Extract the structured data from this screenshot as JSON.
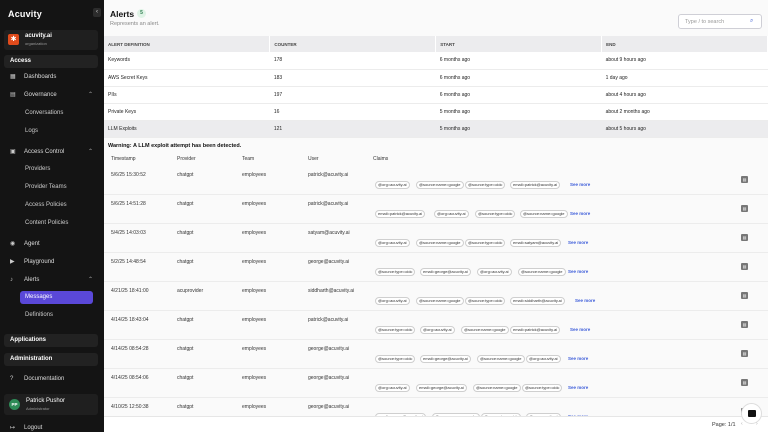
{
  "sidebar": {
    "logo": "Acuvity",
    "collapse_label": "‹",
    "org": {
      "name": "acuvity.ai",
      "subtitle": "organization",
      "icon": "acuvity-logo-icon",
      "icon_glyph": "✱"
    },
    "sections": {
      "access": "Access",
      "applications": "Applications",
      "administration": "Administration"
    },
    "items": {
      "dashboards": {
        "label": "Dashboards",
        "icon": "grid-icon",
        "glyph": "▦"
      },
      "governance": {
        "label": "Governance",
        "icon": "clipboard-icon",
        "glyph": "▤"
      },
      "conversations": "Conversations",
      "logs": "Logs",
      "access_control": {
        "label": "Access Control",
        "icon": "lock-icon",
        "glyph": "▣"
      },
      "providers": "Providers",
      "provider_teams": "Provider Teams",
      "access_policies": "Access Policies",
      "content_policies": "Content Policies",
      "agent": {
        "label": "Agent",
        "icon": "agent-icon",
        "glyph": "◉"
      },
      "playground": {
        "label": "Playground",
        "icon": "playground-icon",
        "glyph": "▶"
      },
      "alerts": {
        "label": "Alerts",
        "icon": "bell-icon",
        "glyph": "♪"
      },
      "messages": "Messages",
      "definitions": "Definitions",
      "documentation": {
        "label": "Documentation",
        "icon": "help-icon",
        "glyph": "?"
      },
      "logout": {
        "label": "Logout",
        "icon": "logout-icon",
        "glyph": "↦"
      }
    },
    "chevron_up": "⌃",
    "chevron_down": "⌄",
    "user": {
      "initials": "PP",
      "name": "Patrick Pushor",
      "role": "Administrator"
    }
  },
  "header": {
    "title": "Alerts",
    "count": "5",
    "subtitle": "Represents an alert.",
    "search_placeholder": "Type / to search",
    "search_glyph": "⌕"
  },
  "definitions_table": {
    "columns": [
      "ALERT DEFINITION",
      "COUNTER",
      "START",
      "END"
    ],
    "rows": [
      [
        "Keywords",
        "178",
        "6 months ago",
        "about 9 hours ago"
      ],
      [
        "AWS Secret Keys",
        "183",
        "6 months ago",
        "1 day ago"
      ],
      [
        "PIIs",
        "197",
        "6 months ago",
        "about 4 hours ago"
      ],
      [
        "Private Keys",
        "16",
        "5 months ago",
        "about 2 months ago"
      ],
      [
        "LLM Exploits",
        "121",
        "5 months ago",
        "about 5 hours ago"
      ]
    ]
  },
  "warning": "Warning: A LLM exploit attempt has been detected.",
  "messages": {
    "columns": [
      "Timestamp",
      "Provider",
      "Team",
      "User",
      "Claims"
    ],
    "see_more": "See more",
    "note_glyph": "▤",
    "rows": [
      {
        "ts": "5/6/25 15:30:52",
        "provider": "chatgpt",
        "team": "employees",
        "user": "patrick@acuvity.ai",
        "claims": [
          "@org=acuvity.ai",
          "@source:name=google",
          "@source:type=oidc",
          "email=patrick@acuvity.ai"
        ]
      },
      {
        "ts": "5/6/25 14:51:28",
        "provider": "chatgpt",
        "team": "employees",
        "user": "patrick@acuvity.ai",
        "claims": [
          "email=patrick@acuvity.ai",
          "@org=acuvity.ai",
          "@source:type=oidc",
          "@source:name=google"
        ]
      },
      {
        "ts": "5/4/25 14:03:03",
        "provider": "chatgpt",
        "team": "employees",
        "user": "satyam@acuvity.ai",
        "claims": [
          "@org=acuvity.ai",
          "@source:name=google",
          "@source:type=oidc",
          "email=satyam@acuvity.ai"
        ]
      },
      {
        "ts": "5/2/25 14:48:54",
        "provider": "chatgpt",
        "team": "employees",
        "user": "george@acuvity.ai",
        "claims": [
          "@source:type=oidc",
          "email=george@acuvity.ai",
          "@org=acuvity.ai",
          "@source:name=google"
        ]
      },
      {
        "ts": "4/21/25 18:41:00",
        "provider": "acuprovider",
        "team": "employees",
        "user": "siddharth@acuvity.ai",
        "claims": [
          "@org=acuvity.ai",
          "@source:name=google",
          "@source:type=oidc",
          "email=siddharth@acuvity.ai"
        ]
      },
      {
        "ts": "4/14/25 18:43:04",
        "provider": "chatgpt",
        "team": "employees",
        "user": "patrick@acuvity.ai",
        "claims": [
          "@source:type=oidc",
          "@org=acuvity.ai",
          "@source:name=google",
          "email=patrick@acuvity.ai"
        ]
      },
      {
        "ts": "4/14/25 08:54:28",
        "provider": "chatgpt",
        "team": "employees",
        "user": "george@acuvity.ai",
        "claims": [
          "@source:type=oidc",
          "email=george@acuvity.ai",
          "@source:name=google",
          "@org=acuvity.ai"
        ]
      },
      {
        "ts": "4/14/25 08:54:06",
        "provider": "chatgpt",
        "team": "employees",
        "user": "george@acuvity.ai",
        "claims": [
          "@org=acuvity.ai",
          "email=george@acuvity.ai",
          "@source:name=google",
          "@source:type=oidc"
        ]
      },
      {
        "ts": "4/10/25 12:50:38",
        "provider": "chatgpt",
        "team": "employees",
        "user": "george@acuvity.ai",
        "claims": [
          "email=george@acuvity.ai",
          "@source:name=google",
          "@source:type=oidc",
          "@org=acuvity.ai"
        ]
      }
    ]
  },
  "footer": {
    "page": "Page: 1/1",
    "prev": "‹",
    "next": "›"
  },
  "colors": {
    "accent": "#5a48d8",
    "link": "#3b5bd9",
    "brand": "#e04b1c"
  }
}
